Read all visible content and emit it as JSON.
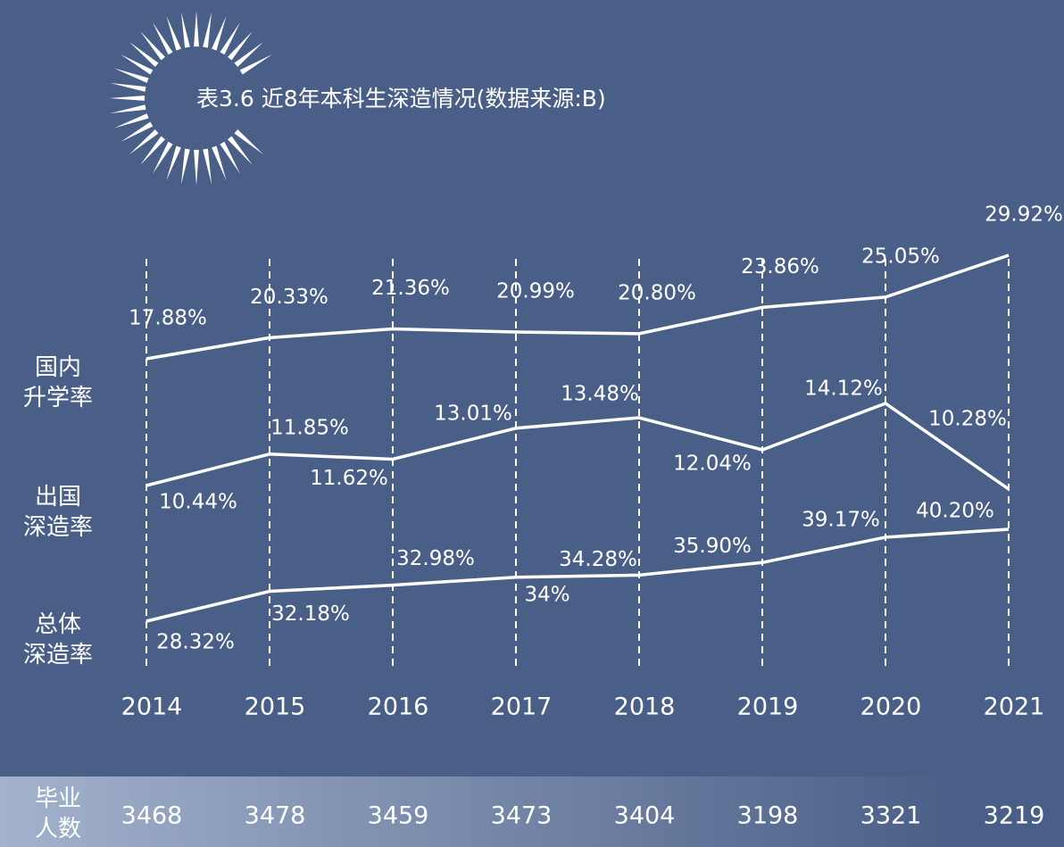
{
  "chart_data": {
    "type": "line",
    "title": "表3.6  近8年本科生深造情况(数据来源:B)",
    "categories": [
      "2014",
      "2015",
      "2016",
      "2017",
      "2018",
      "2019",
      "2020",
      "2021"
    ],
    "series": [
      {
        "name": "国内\n升学率",
        "color": "#ffffff",
        "values": [
          17.88,
          20.33,
          21.36,
          20.99,
          20.8,
          23.86,
          25.05,
          29.92
        ],
        "value_labels": [
          "17.88%",
          "20.33%",
          "21.36%",
          "20.99%",
          "20.80%",
          "23.86%",
          "25.05%",
          "29.92%"
        ]
      },
      {
        "name": "出国\n深造率",
        "color": "#ffffff",
        "values": [
          10.44,
          11.85,
          11.62,
          13.01,
          13.48,
          12.04,
          14.12,
          10.28
        ],
        "value_labels": [
          "10.44%",
          "11.85%",
          "11.62%",
          "13.01%",
          "13.48%",
          "12.04%",
          "14.12%",
          "10.28%"
        ]
      },
      {
        "name": "总体\n深造率",
        "color": "#ffffff",
        "values": [
          28.32,
          32.18,
          32.98,
          34,
          34.28,
          35.9,
          39.17,
          40.2
        ],
        "value_labels": [
          "28.32%",
          "32.18%",
          "32.98%",
          "34%",
          "34.28%",
          "35.90%",
          "39.17%",
          "40.20%"
        ]
      }
    ],
    "graduates": {
      "label": "毕业\n人数",
      "values": [
        "3468",
        "3478",
        "3459",
        "3473",
        "3404",
        "3198",
        "3321",
        "3219"
      ]
    }
  }
}
